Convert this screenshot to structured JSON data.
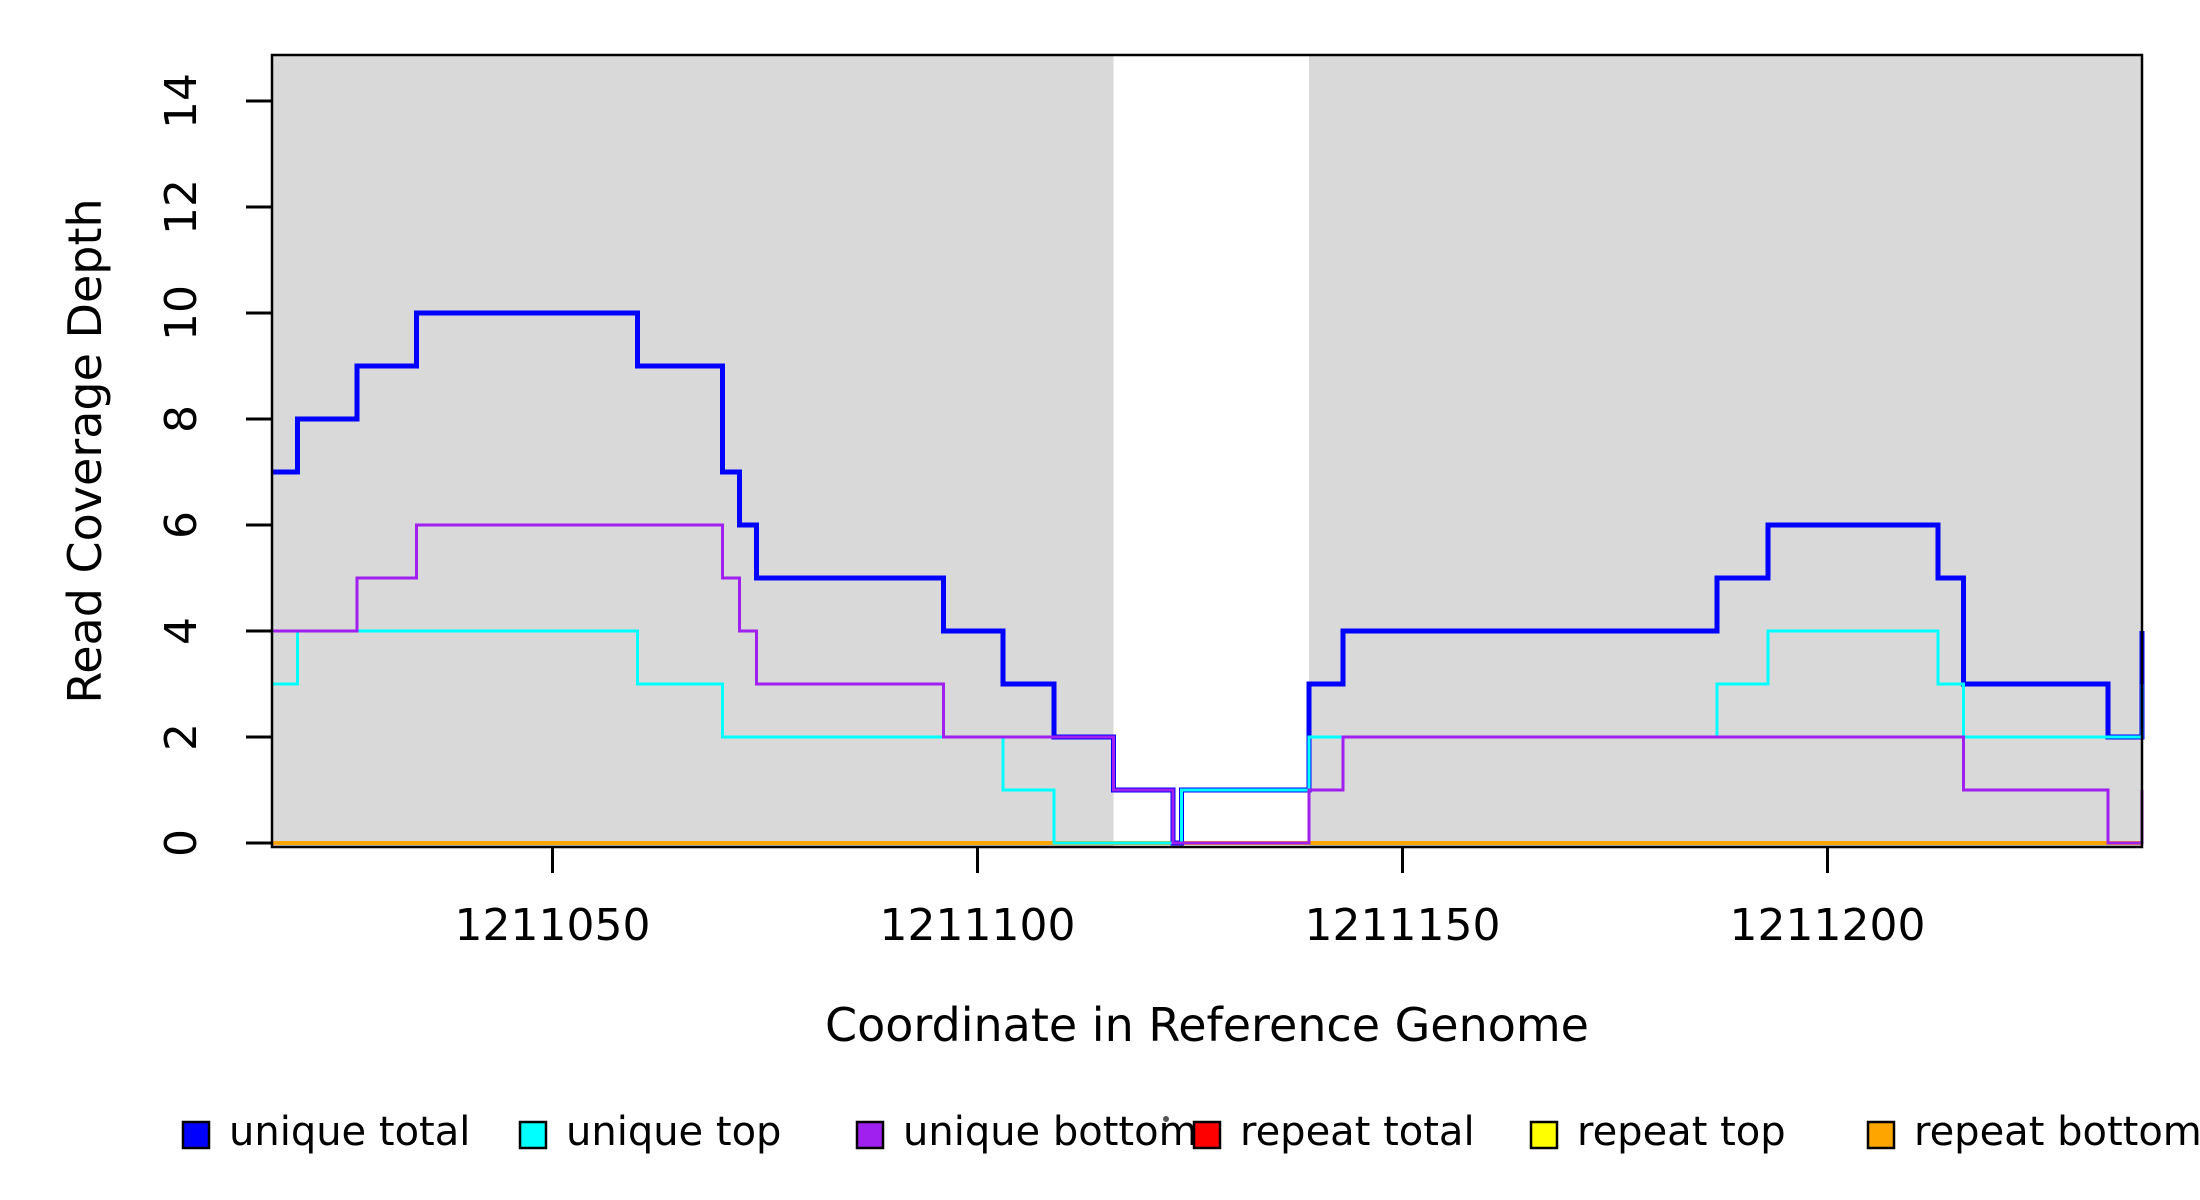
{
  "chart_data": {
    "type": "line",
    "subtype": "step",
    "title": "",
    "xlabel": "Coordinate in Reference Genome",
    "ylabel": "Read Coverage Depth",
    "xlim": [
      1211017,
      1211237
    ],
    "ylim": [
      0,
      15
    ],
    "x_ticks": [
      1211050,
      1211100,
      1211150,
      1211200
    ],
    "y_ticks": [
      0,
      2,
      4,
      6,
      8,
      10,
      12,
      14
    ],
    "grid": false,
    "legend_position": "bottom",
    "background_shading": {
      "color": "#d9d9d9",
      "regions": [
        [
          1211017,
          1211116
        ],
        [
          1211139,
          1211237
        ]
      ],
      "note": "white vertical band between 1211116 and 1211139 has no shading"
    },
    "series": [
      {
        "name": "unique total",
        "color": "#0000ff",
        "line_width": 5,
        "z": 4,
        "steps": [
          [
            1211017,
            7
          ],
          [
            1211020,
            8
          ],
          [
            1211027,
            9
          ],
          [
            1211034,
            10
          ],
          [
            1211060,
            9
          ],
          [
            1211070,
            7
          ],
          [
            1211072,
            6
          ],
          [
            1211074,
            5
          ],
          [
            1211096,
            4
          ],
          [
            1211103,
            3
          ],
          [
            1211109,
            2
          ],
          [
            1211116,
            1
          ],
          [
            1211123,
            0
          ],
          [
            1211124,
            1
          ],
          [
            1211139,
            3
          ],
          [
            1211143,
            4
          ],
          [
            1211187,
            5
          ],
          [
            1211193,
            6
          ],
          [
            1211213,
            5
          ],
          [
            1211216,
            3
          ],
          [
            1211233,
            2
          ],
          [
            1211237,
            4
          ]
        ]
      },
      {
        "name": "unique top",
        "color": "#00ffff",
        "line_width": 3,
        "z": 5,
        "steps": [
          [
            1211017,
            3
          ],
          [
            1211020,
            4
          ],
          [
            1211060,
            3
          ],
          [
            1211070,
            2
          ],
          [
            1211103,
            1
          ],
          [
            1211109,
            0
          ],
          [
            1211124,
            1
          ],
          [
            1211139,
            2
          ],
          [
            1211187,
            3
          ],
          [
            1211193,
            4
          ],
          [
            1211213,
            3
          ],
          [
            1211216,
            2
          ],
          [
            1211237,
            3
          ]
        ]
      },
      {
        "name": "unique bottom",
        "color": "#a020f0",
        "line_width": 3,
        "z": 6,
        "steps": [
          [
            1211017,
            4
          ],
          [
            1211027,
            5
          ],
          [
            1211034,
            6
          ],
          [
            1211070,
            5
          ],
          [
            1211072,
            4
          ],
          [
            1211074,
            3
          ],
          [
            1211096,
            2
          ],
          [
            1211116,
            1
          ],
          [
            1211123,
            0
          ],
          [
            1211139,
            1
          ],
          [
            1211143,
            2
          ],
          [
            1211216,
            1
          ],
          [
            1211233,
            0
          ],
          [
            1211237,
            1
          ]
        ]
      },
      {
        "name": "repeat total",
        "color": "#ff0000",
        "line_width": 3,
        "z": 1,
        "steps": [
          [
            1211017,
            0
          ]
        ]
      },
      {
        "name": "repeat top",
        "color": "#ffff00",
        "line_width": 3,
        "z": 2,
        "steps": [
          [
            1211017,
            0
          ]
        ]
      },
      {
        "name": "repeat bottom",
        "color": "#ffa500",
        "line_width": 4,
        "z": 3,
        "steps": [
          [
            1211017,
            0
          ]
        ]
      }
    ],
    "legend": {
      "entries": [
        {
          "label": "unique total",
          "color": "#0000ff"
        },
        {
          "label": "unique top",
          "color": "#00ffff"
        },
        {
          "label": "unique bottom",
          "color": "#a020f0"
        },
        {
          "label": "repeat total",
          "color": "#ff0000"
        },
        {
          "label": "repeat top",
          "color": "#ffff00"
        },
        {
          "label": "repeat bottom",
          "color": "#ffa500"
        }
      ],
      "stray_dot": true
    },
    "axis_color": "#000000",
    "background_color": "#ffffff"
  }
}
